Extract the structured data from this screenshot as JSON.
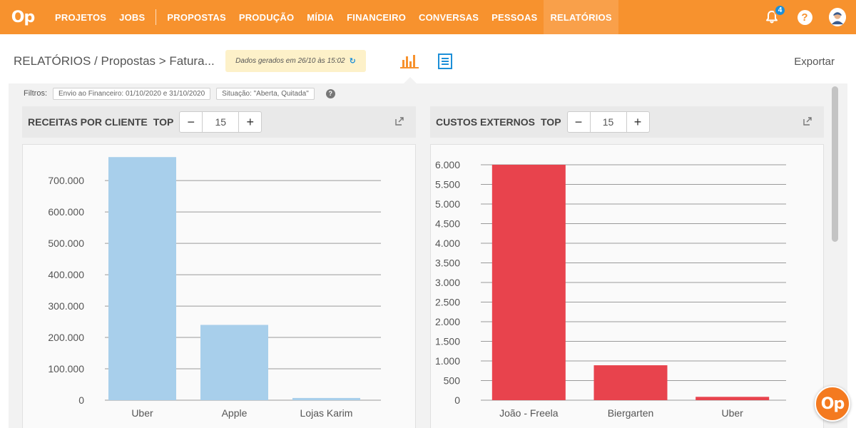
{
  "app": {
    "logo": "Op"
  },
  "nav": {
    "items": [
      "PROJETOS",
      "JOBS",
      "PROPOSTAS",
      "PRODUÇÃO",
      "MÍDIA",
      "FINANCEIRO",
      "CONVERSAS",
      "PESSOAS",
      "RELATÓRIOS"
    ],
    "active": "RELATÓRIOS",
    "notification_count": "4",
    "help_label": "?"
  },
  "header": {
    "breadcrumb": "RELATÓRIOS / Propostas > Fatura...",
    "generated": "Dados gerados em 26/10 às 15:02",
    "refresh_icon": "↻",
    "export": "Exportar"
  },
  "filters": {
    "label": "Filtros:",
    "chips": [
      "Envio ao Financeiro: 01/10/2020 e 31/10/2020",
      "Situação: \"Aberta, Quitada\""
    ],
    "help": "?"
  },
  "panels": [
    {
      "title": "RECEITAS POR CLIENTE",
      "top_label": "TOP",
      "minus": "−",
      "plus": "+",
      "top_value": "15"
    },
    {
      "title": "CUSTOS EXTERNOS",
      "top_label": "TOP",
      "minus": "−",
      "plus": "+",
      "top_value": "15"
    }
  ],
  "chart_data": [
    {
      "type": "bar",
      "categories": [
        "Uber",
        "Apple",
        "Lojas Karim"
      ],
      "values": [
        775000,
        240000,
        7000
      ],
      "yticks": [
        0,
        100000,
        200000,
        300000,
        400000,
        500000,
        600000,
        700000
      ],
      "ytick_labels": [
        "0",
        "100.000",
        "200.000",
        "300.000",
        "400.000",
        "500.000",
        "600.000",
        "700.000"
      ],
      "ylim": [
        0,
        780000
      ],
      "color": "#a8cfeb",
      "grid": true
    },
    {
      "type": "bar",
      "categories": [
        "João - Freela",
        "Biergarten",
        "Uber"
      ],
      "values": [
        6000,
        890,
        85
      ],
      "yticks": [
        0,
        500,
        1000,
        1500,
        2000,
        2500,
        3000,
        3500,
        4000,
        4500,
        5000,
        5500,
        6000
      ],
      "ytick_labels": [
        "0",
        "500",
        "1.000",
        "1.500",
        "2.000",
        "2.500",
        "3.000",
        "3.500",
        "4.000",
        "4.500",
        "5.000",
        "5.500",
        "6.000"
      ],
      "ylim": [
        0,
        6000
      ],
      "color": "#e8434d",
      "grid": true
    }
  ],
  "fab": {
    "label": "Op"
  },
  "colors": {
    "brand": "#f7922e",
    "accent_blue": "#1c8fd8"
  }
}
